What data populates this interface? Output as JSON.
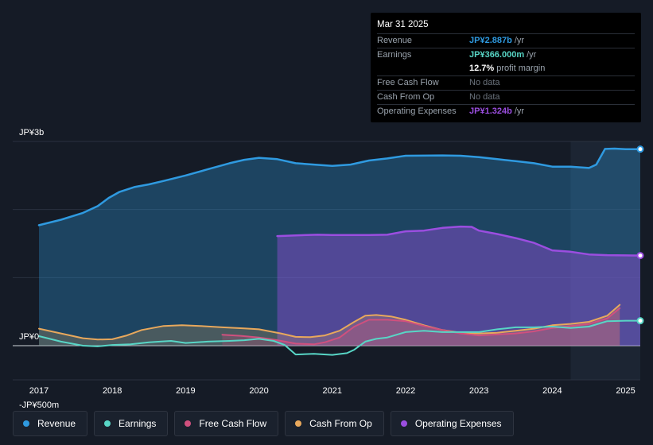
{
  "tooltip": {
    "date": "Mar 31 2025",
    "revenue_label": "Revenue",
    "revenue_value": "JP¥2.887b",
    "revenue_unit": "/yr",
    "earnings_label": "Earnings",
    "earnings_value": "JP¥366.000m",
    "earnings_unit": "/yr",
    "margin_value": "12.7%",
    "margin_unit": "profit margin",
    "fcf_label": "Free Cash Flow",
    "fcf_value": "No data",
    "cfo_label": "Cash From Op",
    "cfo_value": "No data",
    "opex_label": "Operating Expenses",
    "opex_value": "JP¥1.324b",
    "opex_unit": "/yr"
  },
  "colors": {
    "revenue": "#2f9ae0",
    "earnings": "#58d6c6",
    "free_cash_flow": "#d0507e",
    "cash_from_op": "#e8a85c",
    "operating_expenses": "#9b4ee0"
  },
  "legend": [
    {
      "label": "Revenue",
      "color": "#2f9ae0"
    },
    {
      "label": "Earnings",
      "color": "#58d6c6"
    },
    {
      "label": "Free Cash Flow",
      "color": "#d0507e"
    },
    {
      "label": "Cash From Op",
      "color": "#e8a85c"
    },
    {
      "label": "Operating Expenses",
      "color": "#9b4ee0"
    }
  ],
  "chart_data": {
    "type": "area",
    "title": "",
    "y_labels": [
      "JP¥3b",
      "JP¥0",
      "-JP¥500m"
    ],
    "ylim": [
      -500,
      3000
    ],
    "y_unit": "JP¥m",
    "x_ticks": [
      "2017",
      "2018",
      "2019",
      "2020",
      "2021",
      "2022",
      "2023",
      "2024",
      "2025"
    ],
    "x_tick_values": [
      2017,
      2018,
      2019,
      2020,
      2021,
      2022,
      2023,
      2024,
      2025
    ],
    "xlim": [
      2016.7,
      2025.25
    ],
    "highlight_from": 2024.25,
    "series": [
      {
        "name": "Revenue",
        "key": "revenue",
        "fill": true,
        "points": [
          [
            2017.0,
            1770
          ],
          [
            2017.3,
            1850
          ],
          [
            2017.6,
            1950
          ],
          [
            2017.8,
            2050
          ],
          [
            2017.95,
            2170
          ],
          [
            2018.1,
            2260
          ],
          [
            2018.3,
            2330
          ],
          [
            2018.5,
            2370
          ],
          [
            2018.7,
            2420
          ],
          [
            2019.0,
            2500
          ],
          [
            2019.3,
            2590
          ],
          [
            2019.6,
            2680
          ],
          [
            2019.8,
            2730
          ],
          [
            2020.0,
            2760
          ],
          [
            2020.25,
            2740
          ],
          [
            2020.5,
            2680
          ],
          [
            2020.75,
            2660
          ],
          [
            2021.0,
            2640
          ],
          [
            2021.25,
            2660
          ],
          [
            2021.5,
            2720
          ],
          [
            2021.75,
            2750
          ],
          [
            2022.0,
            2790
          ],
          [
            2022.5,
            2795
          ],
          [
            2022.75,
            2790
          ],
          [
            2023.0,
            2770
          ],
          [
            2023.25,
            2740
          ],
          [
            2023.5,
            2710
          ],
          [
            2023.75,
            2680
          ],
          [
            2024.0,
            2630
          ],
          [
            2024.25,
            2630
          ],
          [
            2024.5,
            2610
          ],
          [
            2024.6,
            2660
          ],
          [
            2024.72,
            2890
          ],
          [
            2024.85,
            2895
          ],
          [
            2025.0,
            2887
          ],
          [
            2025.2,
            2887
          ]
        ]
      },
      {
        "name": "Operating Expenses",
        "key": "operating_expenses",
        "fill": true,
        "points": [
          [
            2020.25,
            1610
          ],
          [
            2020.5,
            1620
          ],
          [
            2020.8,
            1630
          ],
          [
            2021.0,
            1625
          ],
          [
            2021.5,
            1625
          ],
          [
            2021.75,
            1630
          ],
          [
            2022.0,
            1680
          ],
          [
            2022.25,
            1690
          ],
          [
            2022.5,
            1730
          ],
          [
            2022.75,
            1750
          ],
          [
            2022.9,
            1745
          ],
          [
            2023.0,
            1690
          ],
          [
            2023.25,
            1640
          ],
          [
            2023.5,
            1580
          ],
          [
            2023.75,
            1510
          ],
          [
            2024.0,
            1400
          ],
          [
            2024.25,
            1380
          ],
          [
            2024.5,
            1340
          ],
          [
            2024.75,
            1330
          ],
          [
            2025.0,
            1326
          ],
          [
            2025.2,
            1324
          ]
        ]
      },
      {
        "name": "Cash From Op",
        "key": "cash_from_op",
        "fill": true,
        "points": [
          [
            2017.0,
            250
          ],
          [
            2017.3,
            180
          ],
          [
            2017.6,
            110
          ],
          [
            2017.8,
            90
          ],
          [
            2018.0,
            95
          ],
          [
            2018.2,
            150
          ],
          [
            2018.4,
            230
          ],
          [
            2018.7,
            290
          ],
          [
            2018.95,
            300
          ],
          [
            2019.2,
            290
          ],
          [
            2019.5,
            270
          ],
          [
            2019.8,
            255
          ],
          [
            2020.0,
            240
          ],
          [
            2020.3,
            180
          ],
          [
            2020.5,
            130
          ],
          [
            2020.7,
            125
          ],
          [
            2020.9,
            150
          ],
          [
            2021.1,
            220
          ],
          [
            2021.3,
            350
          ],
          [
            2021.45,
            440
          ],
          [
            2021.6,
            450
          ],
          [
            2021.8,
            430
          ],
          [
            2022.0,
            380
          ],
          [
            2022.25,
            300
          ],
          [
            2022.5,
            230
          ],
          [
            2022.75,
            190
          ],
          [
            2023.0,
            180
          ],
          [
            2023.25,
            190
          ],
          [
            2023.5,
            220
          ],
          [
            2023.75,
            250
          ],
          [
            2024.0,
            300
          ],
          [
            2024.25,
            320
          ],
          [
            2024.5,
            350
          ],
          [
            2024.75,
            440
          ],
          [
            2024.92,
            600
          ]
        ]
      },
      {
        "name": "Free Cash Flow",
        "key": "free_cash_flow",
        "fill": true,
        "points": [
          [
            2019.5,
            160
          ],
          [
            2019.75,
            145
          ],
          [
            2020.0,
            120
          ],
          [
            2020.25,
            80
          ],
          [
            2020.5,
            30
          ],
          [
            2020.75,
            20
          ],
          [
            2020.9,
            50
          ],
          [
            2021.1,
            120
          ],
          [
            2021.3,
            280
          ],
          [
            2021.5,
            380
          ],
          [
            2021.75,
            380
          ],
          [
            2022.0,
            360
          ],
          [
            2022.25,
            290
          ],
          [
            2022.5,
            230
          ],
          [
            2022.75,
            180
          ],
          [
            2023.0,
            150
          ],
          [
            2023.25,
            165
          ],
          [
            2023.5,
            180
          ],
          [
            2023.75,
            210
          ],
          [
            2024.0,
            260
          ],
          [
            2024.25,
            290
          ],
          [
            2024.5,
            320
          ],
          [
            2024.75,
            400
          ],
          [
            2024.92,
            550
          ]
        ]
      },
      {
        "name": "Earnings",
        "key": "earnings",
        "fill": false,
        "points": [
          [
            2017.0,
            140
          ],
          [
            2017.3,
            60
          ],
          [
            2017.6,
            0
          ],
          [
            2017.8,
            -10
          ],
          [
            2018.0,
            10
          ],
          [
            2018.25,
            20
          ],
          [
            2018.5,
            50
          ],
          [
            2018.8,
            70
          ],
          [
            2019.0,
            40
          ],
          [
            2019.3,
            60
          ],
          [
            2019.6,
            70
          ],
          [
            2019.8,
            80
          ],
          [
            2020.0,
            100
          ],
          [
            2020.2,
            70
          ],
          [
            2020.35,
            10
          ],
          [
            2020.5,
            -130
          ],
          [
            2020.75,
            -120
          ],
          [
            2021.0,
            -135
          ],
          [
            2021.2,
            -110
          ],
          [
            2021.3,
            -60
          ],
          [
            2021.45,
            60
          ],
          [
            2021.6,
            100
          ],
          [
            2021.75,
            120
          ],
          [
            2022.0,
            200
          ],
          [
            2022.25,
            220
          ],
          [
            2022.5,
            200
          ],
          [
            2022.75,
            200
          ],
          [
            2023.0,
            200
          ],
          [
            2023.25,
            240
          ],
          [
            2023.5,
            270
          ],
          [
            2023.75,
            270
          ],
          [
            2024.0,
            280
          ],
          [
            2024.25,
            260
          ],
          [
            2024.5,
            280
          ],
          [
            2024.75,
            360
          ],
          [
            2025.0,
            366
          ],
          [
            2025.2,
            366
          ]
        ]
      }
    ]
  }
}
